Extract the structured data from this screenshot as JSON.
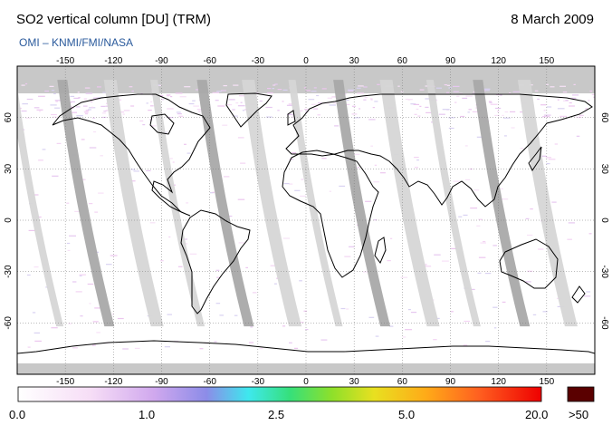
{
  "header": {
    "title": "SO2 vertical column [DU] (TRM)",
    "date": "8 March 2009",
    "credit": "OMI  –  KNMI/FMI/NASA"
  },
  "map": {
    "lon_ticks": [
      "-150",
      "-120",
      "-90",
      "-60",
      "-30",
      "0",
      "30",
      "60",
      "90",
      "120",
      "150"
    ],
    "lat_ticks": [
      "60",
      "30",
      "0",
      "-30",
      "-60"
    ],
    "colors": {
      "ocean": "#ffffff",
      "no_data": "#c8c8c8",
      "swath_light": "#d6d6d6",
      "swath_dark": "#a9a9a9",
      "coast": "#000000",
      "grid": "#777777"
    }
  },
  "colorbar": {
    "labels": [
      "0.0",
      "1.0",
      "2.5",
      "5.0",
      "20.0"
    ],
    "overflow_label": ">50",
    "overflow_color": "#5a0000"
  }
}
